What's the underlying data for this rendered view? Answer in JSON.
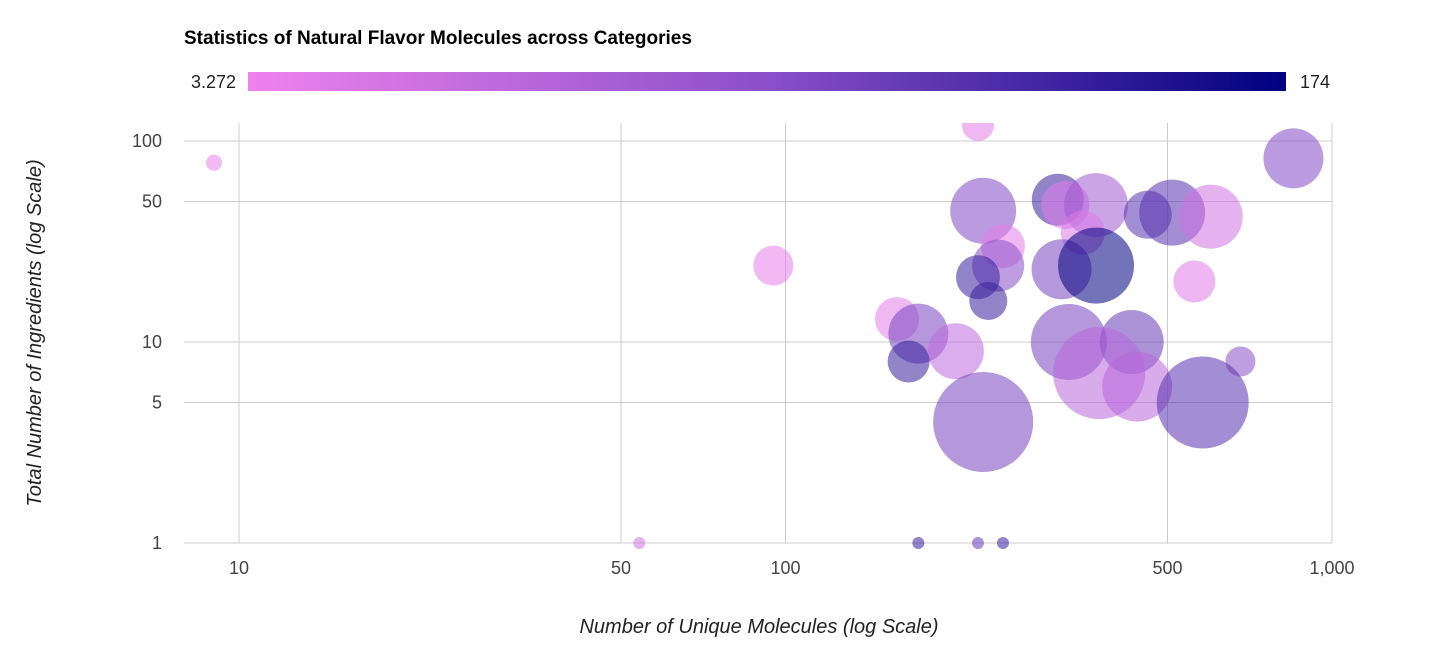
{
  "chart_data": {
    "type": "scatter",
    "title": "Statistics of Natural Flavor Molecules across Categories",
    "xlabel": "Number of Unique Molecules (log Scale)",
    "ylabel": "Total Number of Ingredients (log Scale)",
    "x_scale": "log",
    "y_scale": "log",
    "xlim": [
      8,
      1000
    ],
    "ylim": [
      1,
      120
    ],
    "x_ticks": [
      {
        "value": 10,
        "label": "10"
      },
      {
        "value": 50,
        "label": "50"
      },
      {
        "value": 100,
        "label": "100"
      },
      {
        "value": 500,
        "label": "500"
      },
      {
        "value": 1000,
        "label": "1,000"
      }
    ],
    "y_ticks": [
      {
        "value": 1,
        "label": "1"
      },
      {
        "value": 5,
        "label": "5"
      },
      {
        "value": 10,
        "label": "10"
      },
      {
        "value": 50,
        "label": "50"
      },
      {
        "value": 100,
        "label": "100"
      }
    ],
    "grid": true,
    "colorscale": {
      "min_label": "3.272",
      "max_label": "174",
      "min": 3.272,
      "max": 174,
      "min_color": "#ee82ee",
      "mid_color": "#8b4fc9",
      "max_color": "#000080"
    },
    "points": [
      {
        "x": 9,
        "y": 78,
        "color_value": 8,
        "size": 8
      },
      {
        "x": 225,
        "y": 120,
        "color_value": 12,
        "size": 16
      },
      {
        "x": 850,
        "y": 82,
        "color_value": 95,
        "size": 30
      },
      {
        "x": 315,
        "y": 51,
        "color_value": 140,
        "size": 26
      },
      {
        "x": 325,
        "y": 48,
        "color_value": 15,
        "size": 24
      },
      {
        "x": 370,
        "y": 48,
        "color_value": 70,
        "size": 32
      },
      {
        "x": 230,
        "y": 45,
        "color_value": 95,
        "size": 33
      },
      {
        "x": 460,
        "y": 43,
        "color_value": 120,
        "size": 24
      },
      {
        "x": 510,
        "y": 44,
        "color_value": 120,
        "size": 33
      },
      {
        "x": 600,
        "y": 42,
        "color_value": 30,
        "size": 32
      },
      {
        "x": 350,
        "y": 35,
        "color_value": 20,
        "size": 22
      },
      {
        "x": 250,
        "y": 30,
        "color_value": 12,
        "size": 22
      },
      {
        "x": 95,
        "y": 24,
        "color_value": 10,
        "size": 20
      },
      {
        "x": 245,
        "y": 24,
        "color_value": 90,
        "size": 26
      },
      {
        "x": 320,
        "y": 23,
        "color_value": 100,
        "size": 30
      },
      {
        "x": 370,
        "y": 24,
        "color_value": 174,
        "size": 38
      },
      {
        "x": 225,
        "y": 21,
        "color_value": 140,
        "size": 22
      },
      {
        "x": 560,
        "y": 20,
        "color_value": 15,
        "size": 21
      },
      {
        "x": 235,
        "y": 16,
        "color_value": 140,
        "size": 19
      },
      {
        "x": 160,
        "y": 13,
        "color_value": 12,
        "size": 22
      },
      {
        "x": 175,
        "y": 11,
        "color_value": 100,
        "size": 30
      },
      {
        "x": 205,
        "y": 9,
        "color_value": 45,
        "size": 28
      },
      {
        "x": 330,
        "y": 10,
        "color_value": 100,
        "size": 38
      },
      {
        "x": 430,
        "y": 10,
        "color_value": 110,
        "size": 32
      },
      {
        "x": 168,
        "y": 8,
        "color_value": 140,
        "size": 21
      },
      {
        "x": 375,
        "y": 7,
        "color_value": 50,
        "size": 46
      },
      {
        "x": 440,
        "y": 6,
        "color_value": 50,
        "size": 35
      },
      {
        "x": 680,
        "y": 8,
        "color_value": 90,
        "size": 15
      },
      {
        "x": 580,
        "y": 5,
        "color_value": 120,
        "size": 46
      },
      {
        "x": 230,
        "y": 4,
        "color_value": 100,
        "size": 50
      },
      {
        "x": 54,
        "y": 1,
        "color_value": 30,
        "size": 6
      },
      {
        "x": 175,
        "y": 1,
        "color_value": 140,
        "size": 6
      },
      {
        "x": 225,
        "y": 1,
        "color_value": 110,
        "size": 6
      },
      {
        "x": 250,
        "y": 1,
        "color_value": 140,
        "size": 6
      }
    ]
  }
}
